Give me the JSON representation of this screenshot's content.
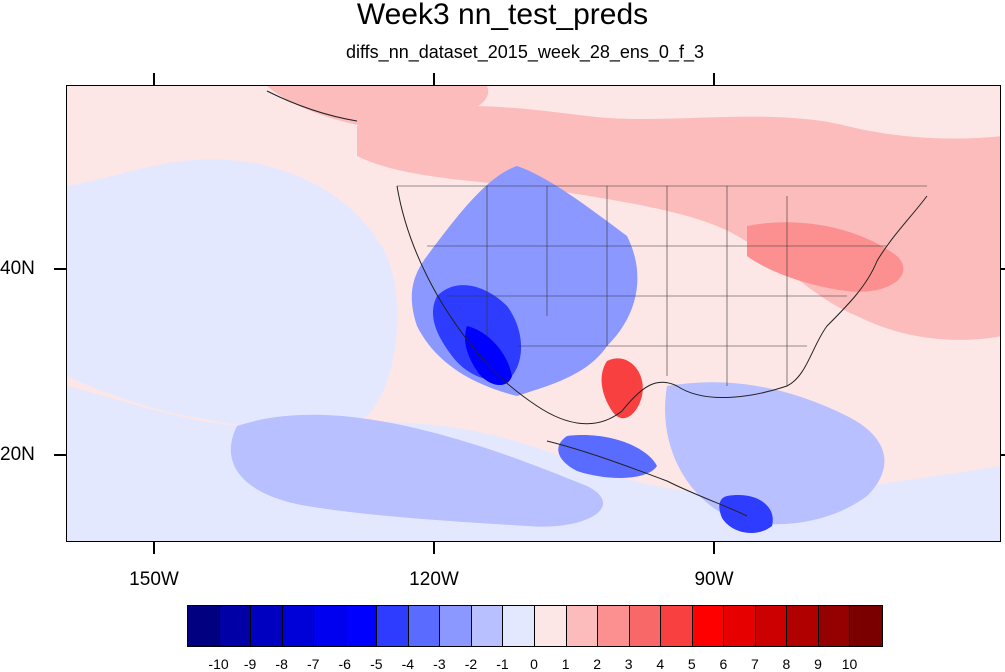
{
  "title": "Week3 nn_test_preds",
  "subtitle": "diffs_nn_dataset_2015_week_28_ens_0_f_3",
  "map": {
    "projection": "cylindrical-equidistant",
    "region": "North America and eastern Pacific",
    "lon_range": [
      -160,
      -61
    ],
    "lat_range": [
      10,
      58
    ],
    "features": [
      "coastlines",
      "US state boundaries"
    ]
  },
  "axes": {
    "lon_labels": [
      "150W",
      "120W",
      "90W"
    ],
    "lat_labels": [
      "40N",
      "20N"
    ]
  },
  "colorbar": {
    "labels": [
      "-10",
      "-9",
      "-8",
      "-7",
      "-6",
      "-5",
      "-4",
      "-3",
      "-2",
      "-1",
      "0",
      "1",
      "2",
      "3",
      "4",
      "5",
      "6",
      "7",
      "8",
      "9",
      "10"
    ],
    "colors": [
      "#000080",
      "#0000a6",
      "#0000c0",
      "#0000d8",
      "#0000f0",
      "#0000ff",
      "#2e3cff",
      "#5a6cff",
      "#8a98ff",
      "#b8c0ff",
      "#e4e8ff",
      "#fde6e6",
      "#fcbcbc",
      "#fc9090",
      "#f86868",
      "#f84040",
      "#ff0000",
      "#e60000",
      "#cc0000",
      "#b00000",
      "#950000",
      "#7a0000"
    ]
  }
}
